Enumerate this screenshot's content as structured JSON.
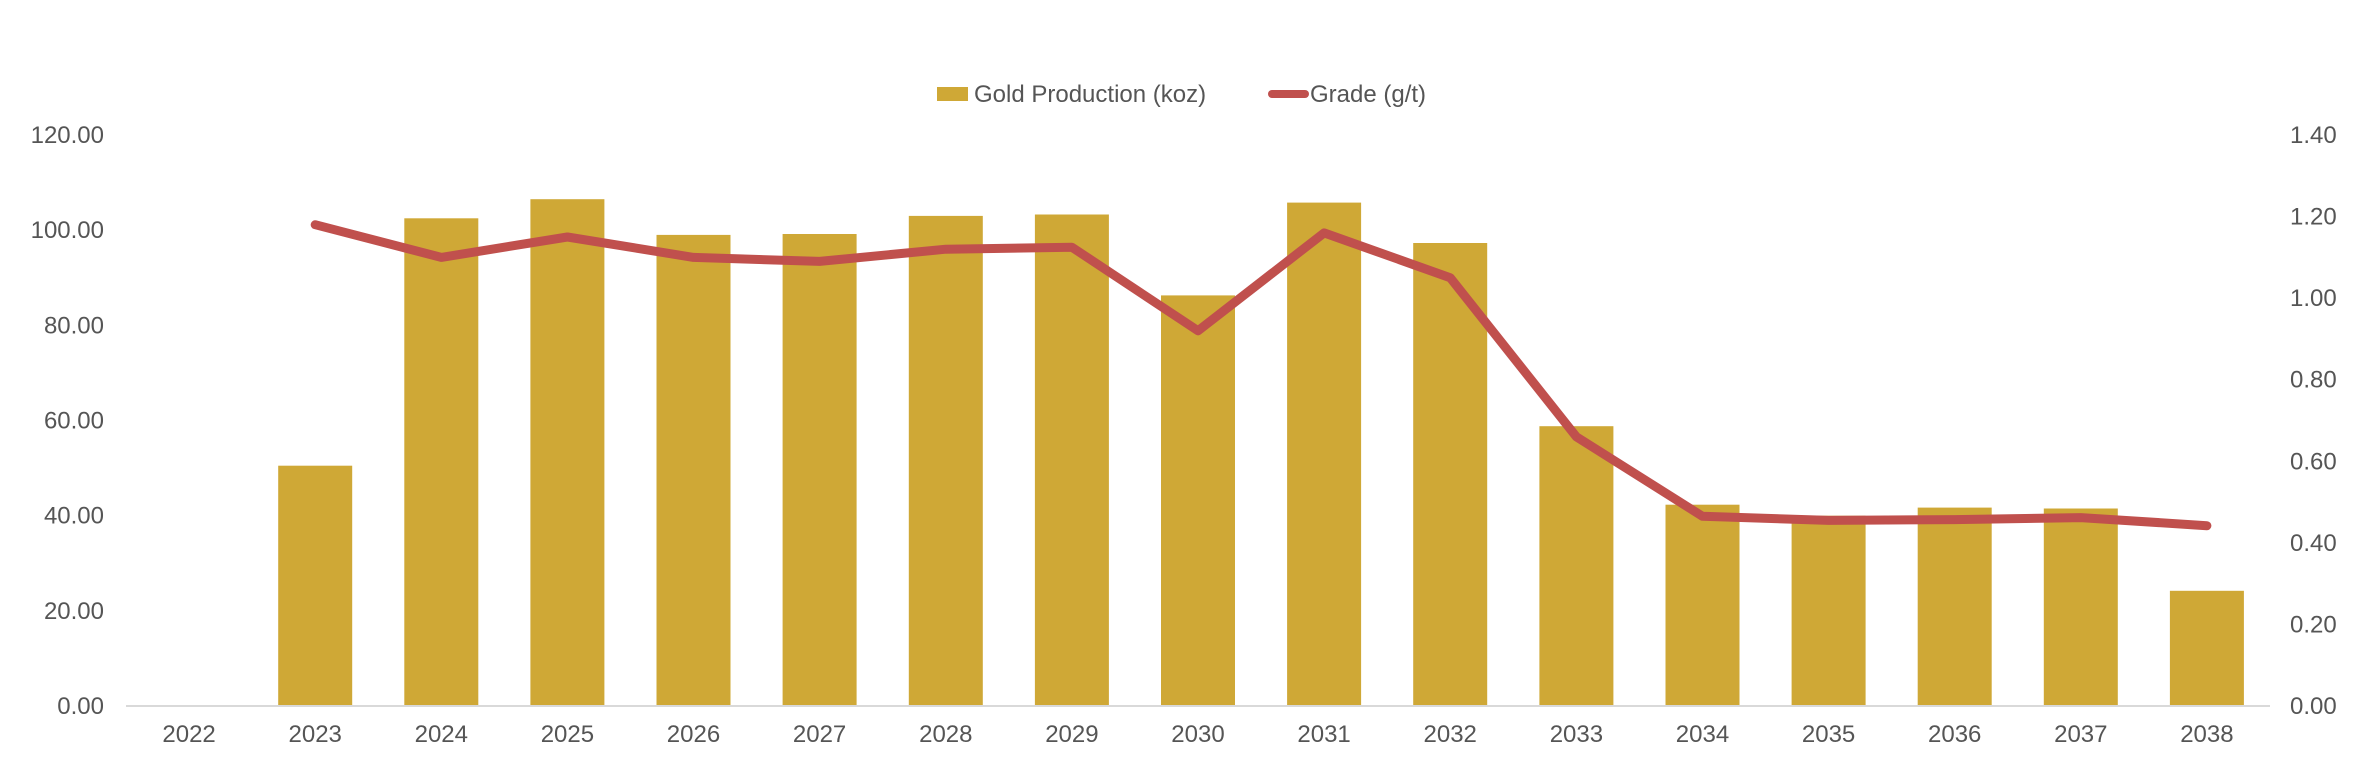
{
  "chart_data": {
    "type": "bar",
    "categories": [
      "2022",
      "2023",
      "2024",
      "2025",
      "2026",
      "2027",
      "2028",
      "2029",
      "2030",
      "2031",
      "2032",
      "2033",
      "2034",
      "2035",
      "2036",
      "2037",
      "2038"
    ],
    "series": [
      {
        "name": "Gold Production (koz)",
        "type": "bar",
        "axis": "left",
        "values": [
          0,
          50.5,
          102.5,
          106.5,
          99.0,
          99.2,
          103.0,
          103.3,
          86.3,
          105.8,
          97.3,
          58.8,
          42.3,
          40.0,
          41.7,
          41.5,
          24.2
        ]
      },
      {
        "name": "Grade (g/t)",
        "type": "line",
        "axis": "right",
        "values": [
          null,
          1.18,
          1.1,
          1.15,
          1.1,
          1.09,
          1.12,
          1.125,
          0.92,
          1.16,
          1.05,
          0.66,
          0.465,
          0.455,
          0.457,
          0.462,
          0.442
        ]
      }
    ],
    "y_left": {
      "min": 0,
      "max": 120,
      "step": 20,
      "ticks": [
        "0.00",
        "20.00",
        "40.00",
        "60.00",
        "80.00",
        "100.00",
        "120.00"
      ]
    },
    "y_right": {
      "min": 0,
      "max": 1.4,
      "step": 0.2,
      "ticks": [
        "0.00",
        "0.20",
        "0.40",
        "0.60",
        "0.80",
        "1.00",
        "1.20",
        "1.40"
      ]
    },
    "legend_position": "top-center",
    "grid": false,
    "colors": {
      "bar": "#CFA836",
      "line": "#C0504D",
      "axis": "#D9D9D9",
      "text": "#555555"
    }
  }
}
